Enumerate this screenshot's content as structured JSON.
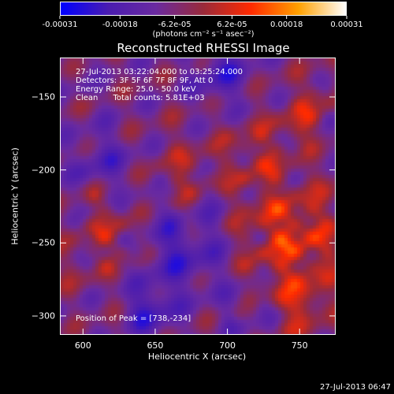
{
  "chart_data": {
    "type": "heatmap",
    "title": "Reconstructed RHESSI Image",
    "xlabel": "Heliocentric X (arcsec)",
    "ylabel": "Heliocentric Y (arcsec)",
    "xlim": [
      584,
      775
    ],
    "ylim": [
      -313,
      -123
    ],
    "xticks": [
      "600",
      "650",
      "700",
      "750"
    ],
    "xtick_values": [
      600,
      650,
      700,
      750
    ],
    "yticks": [
      "-150",
      "-200",
      "-250",
      "-300"
    ],
    "ytick_values": [
      -150,
      -200,
      -250,
      -300
    ],
    "colorbar": {
      "ticks": [
        "-0.00031",
        "-0.00018",
        "-6.2e-05",
        "6.2e-05",
        "0.00018",
        "0.00031"
      ],
      "tick_values": [
        -0.00031,
        -0.00018,
        -6.2e-05,
        6.2e-05,
        0.00018,
        0.00031
      ],
      "unit": "(photons cm⁻² s⁻¹ asec⁻²)",
      "colors": [
        "#0000ff",
        "#4a1cb0",
        "#6a2aa0",
        "#9a2a3a",
        "#ff2a00",
        "#ffa000",
        "#ffffff"
      ]
    },
    "peak": {
      "x": 738,
      "y": -234
    }
  },
  "info": {
    "time_range": "27-Jul-2013 03:22:04.000 to 03:25:24.000",
    "detectors": "Detectors: 3F 5F 6F 7F 8F 9F, Att 0",
    "energy": "Energy Range: 25.0 - 50.0 keV",
    "clean": "Clean      Total counts: 5.81E+03",
    "peak_label": "Position of Peak = [738,-234]"
  },
  "timestamp": "27-Jul-2013 06:47"
}
